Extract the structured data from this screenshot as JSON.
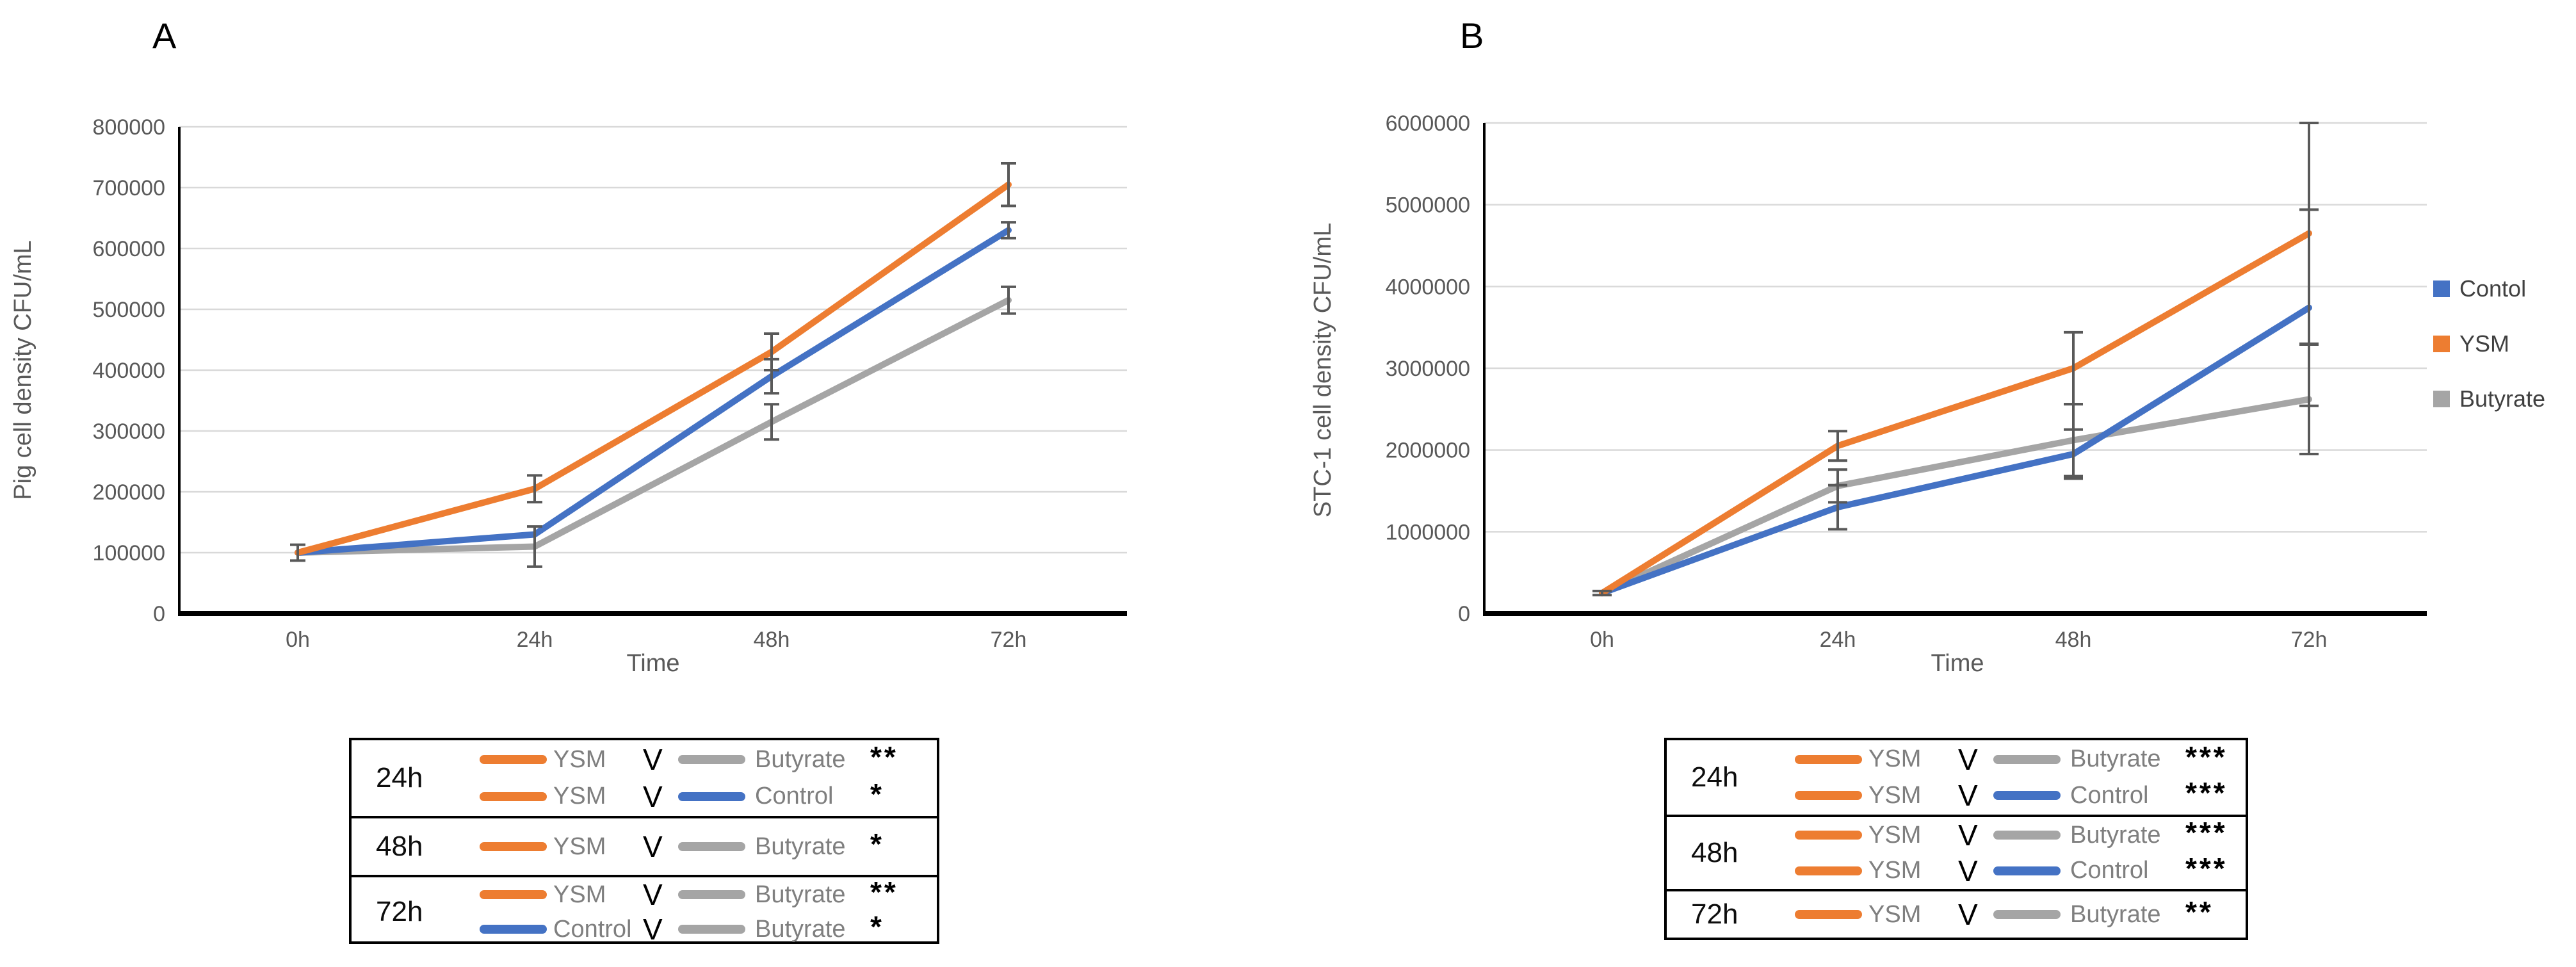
{
  "page": {
    "background": "#FFFFFF"
  },
  "colors": {
    "control": "#4472C4",
    "ysm": "#ED7D31",
    "butyrate": "#A5A5A5",
    "gridline": "#D9D9D9",
    "axis_line": "#000000",
    "error_bar": "#595959",
    "tick_text": "#595959",
    "table_border": "#000000",
    "table_series_text": "#7F7F7F",
    "legend_text": "#404040"
  },
  "chart_data": [
    {
      "type": "line",
      "panel_label": "A",
      "xlabel": "Time",
      "ylabel": "Pig cell density CFU/mL",
      "categories": [
        "0h",
        "24h",
        "48h",
        "72h"
      ],
      "ylim": [
        0,
        800000
      ],
      "ytick_step": 100000,
      "y_ticks": [
        "0",
        "100000",
        "200000",
        "300000",
        "400000",
        "500000",
        "600000",
        "700000",
        "800000"
      ],
      "grid": true,
      "legend_position": "none",
      "series": [
        {
          "name": "Butyrate",
          "color": "#A5A5A5",
          "values": [
            100000,
            110000,
            315000,
            515000
          ],
          "errors": [
            13000,
            33000,
            29000,
            22000
          ]
        },
        {
          "name": "Control",
          "color": "#4472C4",
          "values": [
            100000,
            130000,
            390000,
            630000
          ],
          "errors": [
            0,
            0,
            28000,
            13000
          ]
        },
        {
          "name": "YSM",
          "color": "#ED7D31",
          "values": [
            100000,
            205000,
            430000,
            705000
          ],
          "errors": [
            0,
            22000,
            30000,
            35000
          ]
        }
      ]
    },
    {
      "type": "line",
      "panel_label": "B",
      "xlabel": "Time",
      "ylabel": "STC-1 cell density CFU/mL",
      "categories": [
        "0h",
        "24h",
        "48h",
        "72h"
      ],
      "ylim": [
        0,
        6000000
      ],
      "ytick_step": 1000000,
      "y_ticks": [
        "0",
        "1000000",
        "2000000",
        "3000000",
        "4000000",
        "5000000",
        "6000000"
      ],
      "grid": true,
      "legend_position": "right",
      "legend": [
        {
          "label": "Contol",
          "color": "#4472C4"
        },
        {
          "label": "YSM",
          "color": "#ED7D31"
        },
        {
          "label": "Butyrate",
          "color": "#A5A5A5"
        }
      ],
      "series": [
        {
          "name": "Butyrate",
          "color": "#A5A5A5",
          "values": [
            250000,
            1560000,
            2120000,
            2620000
          ],
          "errors": [
            25000,
            200000,
            440000,
            670000
          ]
        },
        {
          "name": "Contol",
          "color": "#4472C4",
          "values": [
            250000,
            1300000,
            1950000,
            3740000
          ],
          "errors": [
            0,
            270000,
            300000,
            1200000
          ]
        },
        {
          "name": "YSM",
          "color": "#ED7D31",
          "values": [
            250000,
            2050000,
            3000000,
            4650000
          ],
          "errors": [
            0,
            180000,
            440000,
            1350000
          ]
        }
      ]
    }
  ],
  "tables": [
    {
      "panel": "A",
      "groups": [
        {
          "time": "24h",
          "rows": [
            {
              "left": "YSM",
              "left_color": "#ED7D31",
              "versus": "V",
              "right": "Butyrate",
              "right_color": "#A5A5A5",
              "significance": "**"
            },
            {
              "left": "YSM",
              "left_color": "#ED7D31",
              "versus": "V",
              "right": "Control",
              "right_color": "#4472C4",
              "significance": "*"
            }
          ]
        },
        {
          "time": "48h",
          "rows": [
            {
              "left": "YSM",
              "left_color": "#ED7D31",
              "versus": "V",
              "right": "Butyrate",
              "right_color": "#A5A5A5",
              "significance": "*"
            }
          ]
        },
        {
          "time": "72h",
          "rows": [
            {
              "left": "YSM",
              "left_color": "#ED7D31",
              "versus": "V",
              "right": "Butyrate",
              "right_color": "#A5A5A5",
              "significance": "**"
            },
            {
              "left": "Control",
              "left_color": "#4472C4",
              "versus": "V",
              "right": "Butyrate",
              "right_color": "#A5A5A5",
              "significance": "*"
            }
          ]
        }
      ]
    },
    {
      "panel": "B",
      "groups": [
        {
          "time": "24h",
          "rows": [
            {
              "left": "YSM",
              "left_color": "#ED7D31",
              "versus": "V",
              "right": "Butyrate",
              "right_color": "#A5A5A5",
              "significance": "***"
            },
            {
              "left": "YSM",
              "left_color": "#ED7D31",
              "versus": "V",
              "right": "Control",
              "right_color": "#4472C4",
              "significance": "***"
            }
          ]
        },
        {
          "time": "48h",
          "rows": [
            {
              "left": "YSM",
              "left_color": "#ED7D31",
              "versus": "V",
              "right": "Butyrate",
              "right_color": "#A5A5A5",
              "significance": "***"
            },
            {
              "left": "YSM",
              "left_color": "#ED7D31",
              "versus": "V",
              "right": "Control",
              "right_color": "#4472C4",
              "significance": "***"
            }
          ]
        },
        {
          "time": "72h",
          "rows": [
            {
              "left": "YSM",
              "left_color": "#ED7D31",
              "versus": "V",
              "right": "Butyrate",
              "right_color": "#A5A5A5",
              "significance": "**"
            }
          ]
        }
      ]
    }
  ]
}
